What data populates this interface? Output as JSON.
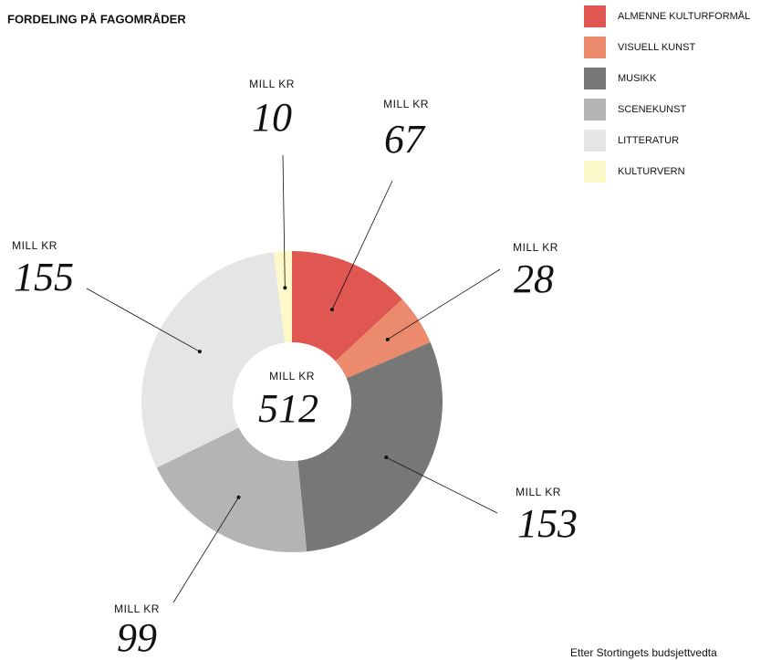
{
  "chart_data": {
    "type": "donut",
    "title": "FORDELING PÅ FAGOMRÅDER",
    "categories": [
      "ALMENNE KULTURFORMÅL",
      "VISUELL KUNST",
      "MUSIKK",
      "SCENEKUNST",
      "LITTERATUR",
      "KULTURVERN"
    ],
    "values": [
      67,
      28,
      153,
      99,
      155,
      10
    ],
    "colors": [
      "#e05651",
      "#ec8a6e",
      "#777876",
      "#b4b5b3",
      "#e4e5e4",
      "#fdf9c8"
    ],
    "unit": "MILL KR",
    "total": 512,
    "note": "Etter Stortingets budsjettvedta"
  }
}
